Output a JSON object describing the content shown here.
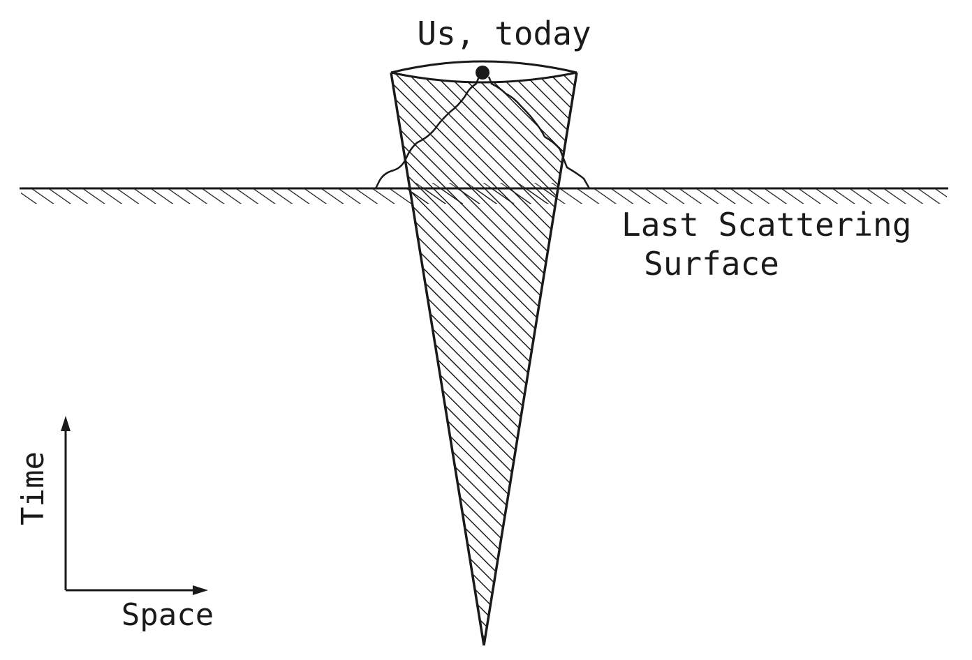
{
  "labels": {
    "observer": "Us, today",
    "surface_line1": "Last Scattering",
    "surface_line2": "Surface",
    "time_axis": "Time",
    "space_axis": "Space"
  },
  "colors": {
    "ink": "#1a1a1a",
    "background": "#ffffff"
  }
}
